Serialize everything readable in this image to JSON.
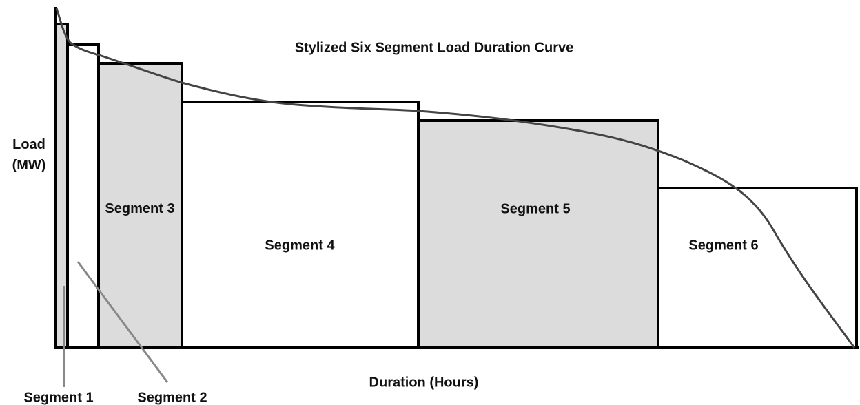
{
  "title": "Stylized Six Segment Load Duration Curve",
  "y_axis_label": "Load (MW)",
  "x_axis_label": "Duration (Hours)",
  "segments": [
    "Segment 1",
    "Segment 2",
    "Segment 3",
    "Segment 4",
    "Segment 5",
    "Segment 6"
  ]
}
